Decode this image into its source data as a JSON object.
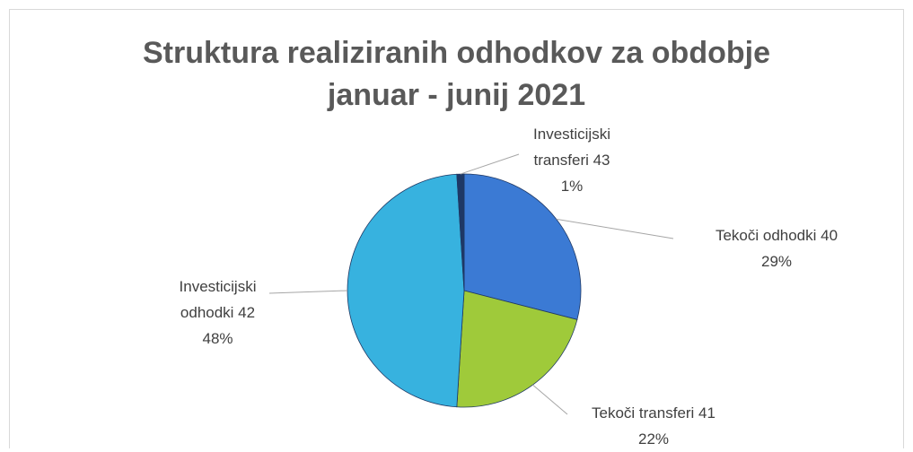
{
  "chart_data": {
    "type": "pie",
    "title": [
      "Struktura realiziranih odhodkov za obdobje",
      "januar - junij 2021"
    ],
    "categories": [
      "Tekoči odhodki 40",
      "Tekoči transferi 41",
      "Investicijski odhodki 42",
      "Investicijski transferi 43"
    ],
    "values": [
      29,
      22,
      48,
      1
    ],
    "value_labels": [
      "29%",
      "22%",
      "48%",
      "1%"
    ],
    "colors": [
      "#3b7ad4",
      "#9fca3a",
      "#37b2df",
      "#1e3866"
    ]
  }
}
